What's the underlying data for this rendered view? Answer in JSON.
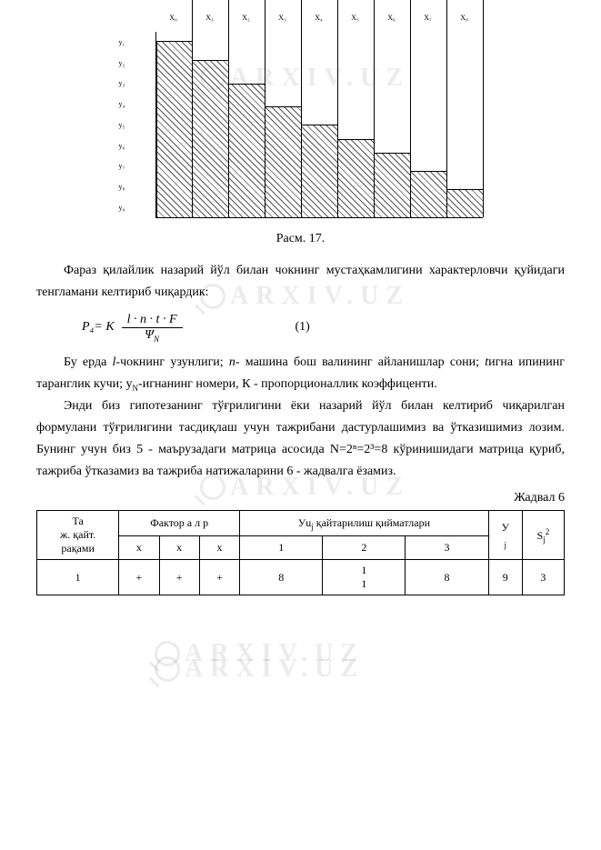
{
  "watermark": {
    "text": "ARXIV.UZ",
    "color": "rgba(0,0,0,0.08)"
  },
  "chart": {
    "type": "bar-step",
    "x_labels": [
      "X₀",
      "X₁",
      "X₂",
      "X₃",
      "X₄",
      "X₅",
      "X₆",
      "X₇",
      "X₈"
    ],
    "y_labels": [
      "y₁",
      "y₂",
      "y₃",
      "y₄",
      "y₅",
      "y₆",
      "y₇",
      "y₈",
      "y₉"
    ],
    "bar_heights_pct": [
      95,
      85,
      72,
      60,
      50,
      42,
      35,
      25,
      15
    ],
    "hatch_pattern": "diagonal-lines",
    "hatch_color": "#555555",
    "background_color": "#ffffff",
    "border_color": "#000000",
    "label_fontsize": 8
  },
  "caption": "Расм. 17.",
  "para1": "Фараз қилайлик назарий йўл билан чокнинг мустаҳкамлигини характерловчи қуйидаги тенгламани келтириб чиқардик:",
  "formula": {
    "lhs": "Р₄= К",
    "numerator": "l · n · t · F",
    "denominator": "Ψ",
    "den_sub": "N",
    "eq_number": "(1)"
  },
  "para2_parts": {
    "a": "Бу ерда ",
    "b": "l",
    "c": "-чокнинг узунлиги; ",
    "d": "n",
    "e": "- машина бош валининг айланишлар сони; ",
    "f": "t",
    "g": "игна ипининг таранглик кучи; y",
    "h": "N",
    "i": "-игнанинг номери, К - пропорционаллик коэффиценти."
  },
  "para3": "Энди биз гипотезанинг тўғрилигини ёки назарий йўл билан келтириб чиқарилган формулани тўғрилигини тасдиқлаш учун тажрибани дастурлашимиз ва ўтказишимиз лозим. Бунинг учун биз 5 - маърузадаги матрица асосида N=2ⁿ=2³=8 кўринишидаги матрица қуриб, тажриба ўтказамиз ва тажриба натижаларини 6 - жадвалга ёзамиз.",
  "table_caption": "Жадвал 6",
  "table": {
    "header_row1": {
      "col1_lines": [
        "Та",
        "ж. қайт.",
        "рақами"
      ],
      "col2": "Фактор         а л          р",
      "col3_a": "Уu",
      "col3_b": "j",
      "col3_c": " қайтарилиш қийматлари",
      "col4_a": "У",
      "col4_b": "j",
      "col5_a": "S",
      "col5_b": "j",
      "col5_c": "2"
    },
    "header_row2": [
      "x",
      "x",
      "x",
      "1",
      "2",
      "3"
    ],
    "data_row": [
      "1",
      "+",
      "+",
      "+",
      "8",
      "1\n1",
      "8",
      "9",
      "3"
    ]
  },
  "colors": {
    "text": "#000000",
    "background": "#ffffff"
  },
  "typography": {
    "font_family": "Times New Roman",
    "body_fontsize": 14,
    "table_fontsize": 12
  }
}
